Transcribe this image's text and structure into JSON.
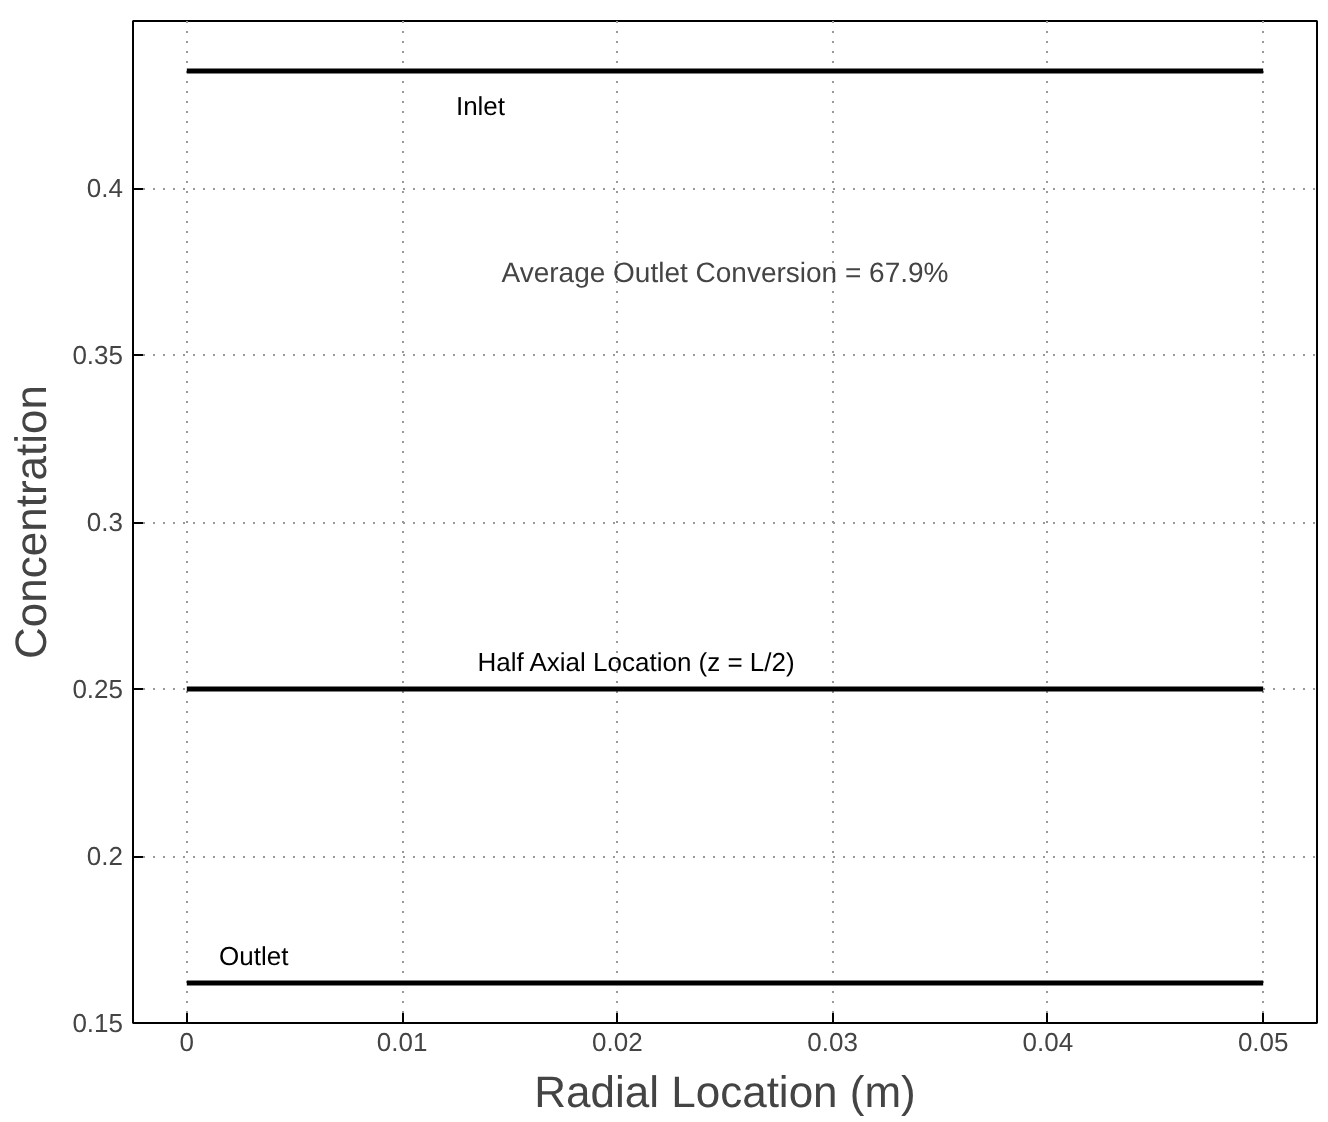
{
  "chart_data": {
    "type": "line",
    "xlabel": "Radial Location (m)",
    "ylabel": "Concentration",
    "x": [
      0,
      0.05
    ],
    "series": [
      {
        "name": "Inlet",
        "color": "#000000",
        "values": [
          0.435,
          0.435
        ]
      },
      {
        "name": "Half Axial Location  (z = L/2)",
        "color": "#000000",
        "values": [
          0.25,
          0.25
        ]
      },
      {
        "name": "Outlet",
        "color": "#000000",
        "values": [
          0.162,
          0.162
        ]
      }
    ],
    "annotations": [
      "Average Outlet Conversion = 67.9%"
    ],
    "xlim": [
      -0.0025,
      0.0525
    ],
    "ylim": [
      0.15,
      0.45
    ],
    "xticks": [
      0,
      0.01,
      0.02,
      0.03,
      0.04,
      0.05
    ],
    "yticks": [
      0.15,
      0.2,
      0.25,
      0.3,
      0.35,
      0.4
    ],
    "grid": true,
    "marker": "none",
    "line_style": "solid"
  }
}
